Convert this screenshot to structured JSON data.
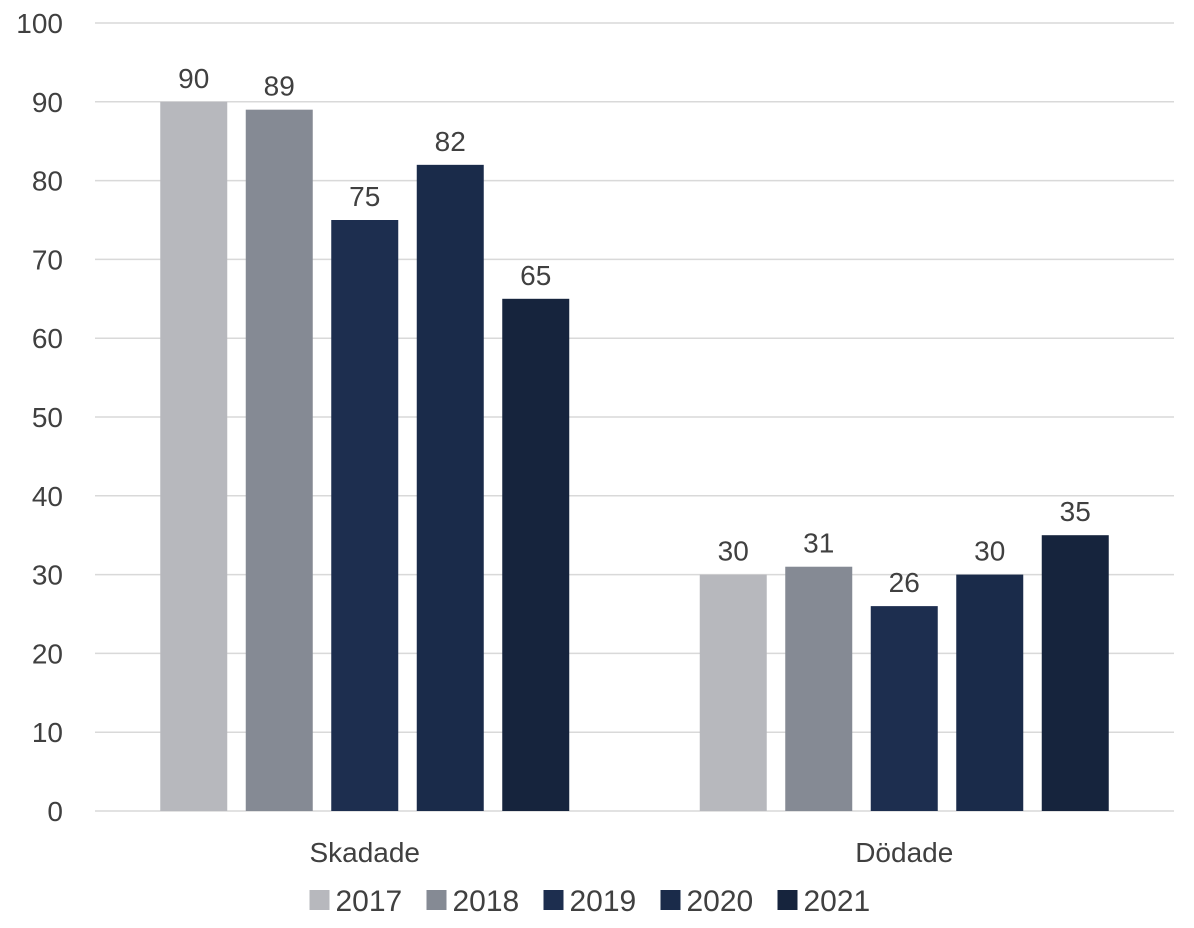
{
  "chart_data": {
    "type": "bar",
    "categories": [
      "Skadade",
      "Dödade"
    ],
    "series": [
      {
        "name": "2017",
        "values": [
          90,
          30
        ],
        "color": "#b7b8bd"
      },
      {
        "name": "2018",
        "values": [
          89,
          31
        ],
        "color": "#858a94"
      },
      {
        "name": "2019",
        "values": [
          75,
          26
        ],
        "color": "#1d2e4f"
      },
      {
        "name": "2020",
        "values": [
          82,
          30
        ],
        "color": "#1a2b4a"
      },
      {
        "name": "2021",
        "values": [
          65,
          35
        ],
        "color": "#16243d"
      }
    ],
    "title": "",
    "xlabel": "",
    "ylabel": "",
    "ylim": [
      0,
      100
    ],
    "yticks": [
      0,
      10,
      20,
      30,
      40,
      50,
      60,
      70,
      80,
      90,
      100
    ],
    "grid": true,
    "legend_position": "bottom",
    "data_labels": true
  }
}
